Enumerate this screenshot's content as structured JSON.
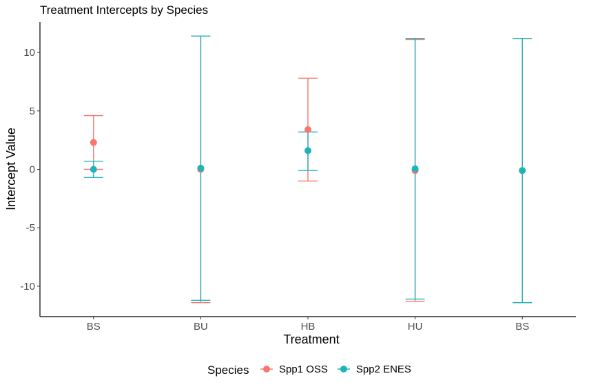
{
  "chart_data": {
    "type": "scatter",
    "title": "Treatment Intercepts by Species",
    "xlabel": "Treatment",
    "ylabel": "Intercept Value",
    "categories": [
      "BS",
      "BU",
      "HB",
      "HU",
      "BS"
    ],
    "ylim": [
      -12.6,
      12.6
    ],
    "yticks": [
      -10,
      -5,
      0,
      5,
      10
    ],
    "ytick_labels": [
      "-10",
      "-5",
      "0",
      "5",
      "10"
    ],
    "grid": false,
    "legend": {
      "title": "Species",
      "position": "bottom"
    },
    "series": [
      {
        "name": "Spp1 OSS",
        "color": "#F8766D",
        "values": [
          2.3,
          0.0,
          3.4,
          -0.1,
          -0.1
        ],
        "lower": [
          0.0,
          -11.4,
          -1.0,
          -11.3,
          -11.4
        ],
        "upper": [
          4.6,
          11.4,
          7.8,
          11.1,
          11.2
        ]
      },
      {
        "name": "Spp2 ENES",
        "color": "#1FB5B8",
        "values": [
          0.0,
          0.1,
          1.6,
          0.05,
          -0.1
        ],
        "lower": [
          -0.7,
          -11.2,
          -0.1,
          -11.1,
          -11.4
        ],
        "upper": [
          0.7,
          11.4,
          3.2,
          11.2,
          11.2
        ]
      }
    ]
  }
}
